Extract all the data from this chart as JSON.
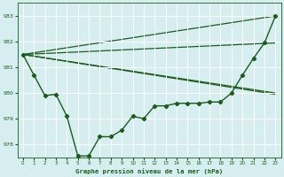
{
  "title": "Graphe pression niveau de la mer (hPa)",
  "bg_color": "#d6eef0",
  "grid_color": "#ffffff",
  "line_color": "#1a5c1a",
  "ylim": [
    977.5,
    983.5
  ],
  "xlim": [
    -0.5,
    23.5
  ],
  "yticks": [
    978,
    979,
    980,
    981,
    982,
    983
  ],
  "xticks": [
    0,
    1,
    2,
    3,
    4,
    5,
    6,
    7,
    8,
    9,
    10,
    11,
    12,
    13,
    14,
    15,
    16,
    17,
    18,
    19,
    20,
    21,
    22,
    23
  ],
  "main_series": {
    "x": [
      0,
      1,
      2,
      3,
      4,
      5,
      6,
      7,
      8,
      9,
      10,
      11,
      12,
      13,
      14,
      15,
      16,
      17,
      18,
      19,
      20,
      21,
      22,
      23
    ],
    "y": [
      981.5,
      980.7,
      979.9,
      979.95,
      979.1,
      977.55,
      977.55,
      978.3,
      978.3,
      978.55,
      979.1,
      979.0,
      979.5,
      979.5,
      979.6,
      979.6,
      979.6,
      979.65,
      979.65,
      980.0,
      980.7,
      981.35,
      981.95,
      983.0
    ]
  },
  "fan_lines": [
    {
      "x": [
        0,
        23
      ],
      "y": [
        981.5,
        983.0
      ]
    },
    {
      "x": [
        0,
        23
      ],
      "y": [
        981.5,
        981.95
      ]
    },
    {
      "x": [
        0,
        23
      ],
      "y": [
        981.5,
        980.0
      ]
    },
    {
      "x": [
        0,
        23
      ],
      "y": [
        981.5,
        979.95
      ]
    }
  ],
  "marker": "D",
  "markersize": 2.2,
  "linewidth": 1.0,
  "fan_linewidth": 0.9
}
